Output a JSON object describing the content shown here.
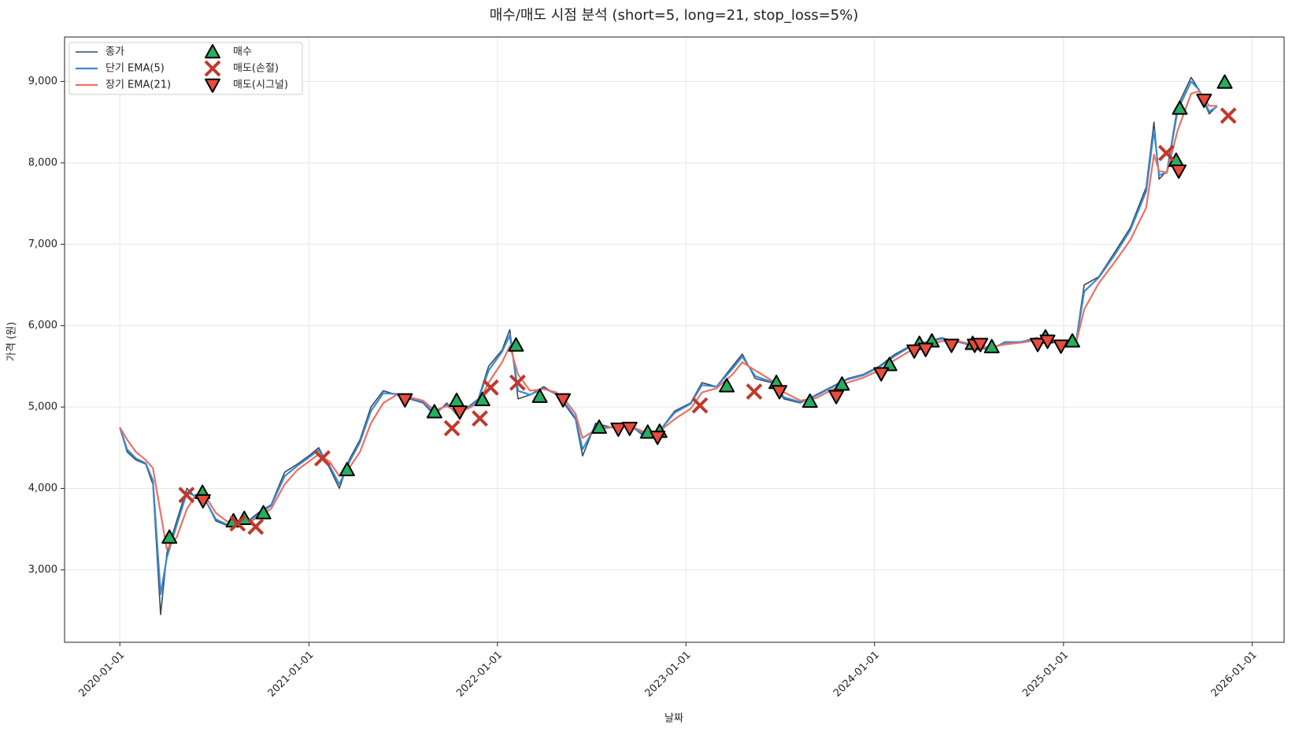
{
  "chart_data": {
    "type": "line",
    "title": "매수/매도 시점 분석 (short=5, long=21, stop_loss=5%)",
    "x_label": "날짜",
    "y_label": "가격 (원)",
    "xlim": [
      "2019-09-16",
      "2026-03-04"
    ],
    "xticks": [
      "2020-01-01",
      "2021-01-01",
      "2022-01-01",
      "2023-01-01",
      "2024-01-01",
      "2025-01-01",
      "2026-01-01"
    ],
    "ylim": [
      2110,
      9546
    ],
    "yticks": [
      {
        "value": 3000,
        "label": "3,000"
      },
      {
        "value": 4000,
        "label": "4,000"
      },
      {
        "value": 5000,
        "label": "5,000"
      },
      {
        "value": 6000,
        "label": "6,000"
      },
      {
        "value": 7000,
        "label": "7,000"
      },
      {
        "value": 8000,
        "label": "8,000"
      },
      {
        "value": 9000,
        "label": "9,000"
      }
    ],
    "grid": true,
    "legend": "upper left",
    "x": [
      "2020-01-01",
      "2020-01-15",
      "2020-02-01",
      "2020-02-20",
      "2020-03-05",
      "2020-03-20",
      "2020-04-01",
      "2020-04-20",
      "2020-05-10",
      "2020-05-25",
      "2020-06-15",
      "2020-07-05",
      "2020-07-25",
      "2020-08-15",
      "2020-09-05",
      "2020-09-25",
      "2020-10-20",
      "2020-11-15",
      "2020-12-10",
      "2021-01-01",
      "2021-01-20",
      "2021-02-10",
      "2021-03-01",
      "2021-03-20",
      "2021-04-10",
      "2021-05-01",
      "2021-05-25",
      "2021-06-20",
      "2021-07-15",
      "2021-08-10",
      "2021-09-01",
      "2021-09-25",
      "2021-10-15",
      "2021-11-05",
      "2021-11-25",
      "2021-12-15",
      "2022-01-10",
      "2022-01-25",
      "2022-02-10",
      "2022-03-05",
      "2022-04-01",
      "2022-04-25",
      "2022-05-15",
      "2022-06-01",
      "2022-06-15",
      "2022-07-10",
      "2022-08-10",
      "2022-09-10",
      "2022-10-10",
      "2022-11-10",
      "2022-12-10",
      "2023-01-10",
      "2023-02-01",
      "2023-03-01",
      "2023-04-01",
      "2023-04-20",
      "2023-05-15",
      "2023-06-15",
      "2023-07-10",
      "2023-08-10",
      "2023-09-10",
      "2023-10-10",
      "2023-11-10",
      "2023-12-10",
      "2024-01-10",
      "2024-02-10",
      "2024-03-10",
      "2024-04-10",
      "2024-05-10",
      "2024-06-10",
      "2024-07-10",
      "2024-08-10",
      "2024-09-10",
      "2024-10-10",
      "2024-11-10",
      "2024-12-10",
      "2025-01-10",
      "2025-01-25",
      "2025-02-10",
      "2025-03-10",
      "2025-04-10",
      "2025-05-10",
      "2025-06-10",
      "2025-06-25",
      "2025-07-05",
      "2025-07-20",
      "2025-08-10",
      "2025-09-05",
      "2025-09-20",
      "2025-10-10",
      "2025-10-25"
    ],
    "series": [
      {
        "name": "종가",
        "color": "#34495e",
        "width": 1.6,
        "values": [
          4750,
          4450,
          4350,
          4300,
          4050,
          2450,
          3200,
          3600,
          4000,
          3900,
          3850,
          3600,
          3550,
          3550,
          3600,
          3700,
          3800,
          4200,
          4300,
          4400,
          4500,
          4250,
          4000,
          4350,
          4600,
          5000,
          5200,
          5150,
          5100,
          5050,
          4900,
          5050,
          4900,
          5000,
          5100,
          5500,
          5700,
          5950,
          5100,
          5150,
          5250,
          5150,
          5000,
          4850,
          4400,
          4800,
          4750,
          4800,
          4650,
          4700,
          4950,
          5050,
          5300,
          5250,
          5500,
          5650,
          5350,
          5300,
          5100,
          5050,
          5150,
          5250,
          5350,
          5400,
          5500,
          5650,
          5750,
          5800,
          5850,
          5800,
          5750,
          5700,
          5800,
          5800,
          5850,
          5800,
          5750,
          5800,
          6500,
          6600,
          6900,
          7200,
          7700,
          8500,
          7800,
          7900,
          8700,
          9050,
          8900,
          8600,
          8700
        ]
      },
      {
        "name": "단기 EMA(5)",
        "color": "#3a8ad0",
        "width": 2.2,
        "values": [
          4750,
          4480,
          4370,
          4310,
          4100,
          2700,
          3150,
          3550,
          3950,
          3910,
          3850,
          3620,
          3560,
          3550,
          3590,
          3680,
          3790,
          4150,
          4280,
          4380,
          4470,
          4280,
          4050,
          4320,
          4570,
          4950,
          5170,
          5160,
          5110,
          5060,
          4920,
          5030,
          4920,
          4990,
          5090,
          5450,
          5680,
          5880,
          5200,
          5150,
          5230,
          5160,
          5020,
          4870,
          4480,
          4770,
          4750,
          4790,
          4670,
          4700,
          4930,
          5040,
          5270,
          5250,
          5470,
          5620,
          5380,
          5310,
          5120,
          5060,
          5140,
          5240,
          5340,
          5390,
          5490,
          5630,
          5740,
          5790,
          5840,
          5800,
          5760,
          5710,
          5790,
          5800,
          5840,
          5800,
          5760,
          5790,
          6420,
          6590,
          6870,
          7170,
          7650,
          8400,
          7850,
          7880,
          8650,
          9000,
          8900,
          8630,
          8690
        ]
      },
      {
        "name": "장기 EMA(21)",
        "color": "#ec7063",
        "width": 2.2,
        "values": [
          4750,
          4600,
          4450,
          4350,
          4250,
          3700,
          3250,
          3400,
          3750,
          3900,
          3900,
          3700,
          3600,
          3560,
          3570,
          3650,
          3750,
          4050,
          4230,
          4330,
          4420,
          4330,
          4150,
          4250,
          4450,
          4800,
          5050,
          5150,
          5120,
          5080,
          4960,
          5010,
          4950,
          4980,
          5050,
          5300,
          5550,
          5750,
          5400,
          5200,
          5220,
          5180,
          5060,
          4920,
          4620,
          4720,
          4750,
          4780,
          4700,
          4700,
          4850,
          4980,
          5180,
          5230,
          5400,
          5550,
          5450,
          5330,
          5180,
          5080,
          5110,
          5210,
          5300,
          5360,
          5450,
          5580,
          5690,
          5760,
          5810,
          5810,
          5770,
          5730,
          5770,
          5790,
          5820,
          5810,
          5770,
          5780,
          6200,
          6520,
          6780,
          7050,
          7450,
          8100,
          7900,
          7880,
          8400,
          8850,
          8880,
          8700,
          8700
        ]
      }
    ],
    "signals": [
      {
        "name": "매수",
        "color": "#27ae60",
        "shape": "triangle-up",
        "x": [
          "2020-04-06",
          "2020-06-09",
          "2020-08-08",
          "2020-08-29",
          "2020-10-05",
          "2021-03-16",
          "2021-09-01",
          "2021-10-14",
          "2021-12-03",
          "2022-02-06",
          "2022-03-24",
          "2022-07-17",
          "2022-10-19",
          "2022-11-11",
          "2023-03-21",
          "2023-06-25",
          "2023-08-29",
          "2023-10-30",
          "2024-01-30",
          "2024-03-28",
          "2024-04-21",
          "2024-07-09",
          "2024-08-15",
          "2024-11-27",
          "2025-01-18",
          "2025-08-07",
          "2025-08-14",
          "2025-11-09"
        ],
        "values": [
          3400,
          3950,
          3600,
          3630,
          3700,
          4230,
          4940,
          5080,
          5090,
          5760,
          5130,
          4750,
          4690,
          4700,
          5260,
          5300,
          5070,
          5280,
          5520,
          5780,
          5810,
          5780,
          5740,
          5860,
          5810,
          8030,
          8670,
          8990
        ]
      },
      {
        "name": "매도(손절)",
        "color": "#c0392b",
        "shape": "x",
        "x": [
          "2020-05-09",
          "2020-08-16",
          "2020-09-20",
          "2021-01-27",
          "2021-10-05",
          "2021-11-28",
          "2021-12-19",
          "2022-02-09",
          "2023-01-28",
          "2023-05-13",
          "2025-07-19",
          "2025-11-16"
        ],
        "values": [
          3920,
          3570,
          3530,
          4370,
          4740,
          4860,
          5240,
          5300,
          5020,
          5190,
          8120,
          8580
        ]
      },
      {
        "name": "매도(시그널)",
        "color": "#e74c3c",
        "shape": "triangle-down",
        "x": [
          "2020-06-10",
          "2021-07-06",
          "2021-10-20",
          "2022-05-08",
          "2022-08-23",
          "2022-09-14",
          "2022-11-07",
          "2023-07-01",
          "2023-10-19",
          "2024-01-14",
          "2024-03-18",
          "2024-04-09",
          "2024-05-29",
          "2024-07-13",
          "2024-07-24",
          "2024-11-12",
          "2024-12-01",
          "2024-12-27",
          "2025-08-12",
          "2025-09-30"
        ],
        "values": [
          3850,
          5090,
          4940,
          5090,
          4730,
          4740,
          4630,
          5190,
          5130,
          5410,
          5690,
          5710,
          5760,
          5760,
          5770,
          5770,
          5810,
          5750,
          7900,
          8770
        ]
      }
    ]
  }
}
